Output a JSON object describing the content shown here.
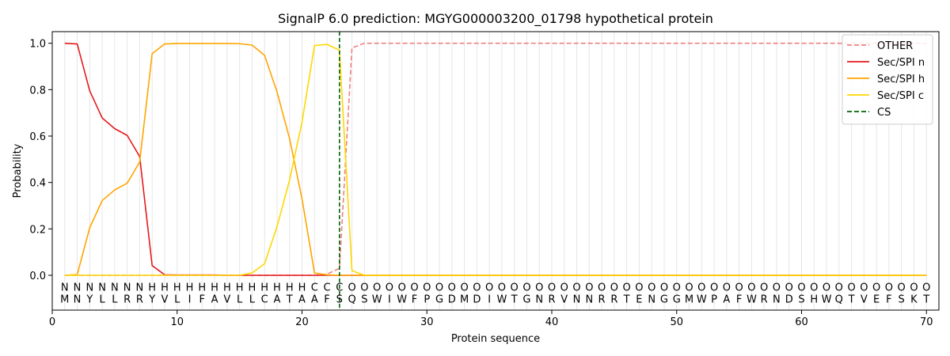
{
  "chart_data": {
    "type": "line",
    "title": "SignalP 6.0 prediction: MGYG000003200_01798 hypothetical protein",
    "xlabel": "Protein sequence",
    "ylabel": "Probability",
    "xlim": [
      0,
      71
    ],
    "ylim": [
      -0.15,
      1.05
    ],
    "xticks": [
      0,
      10,
      20,
      30,
      40,
      50,
      60,
      70
    ],
    "yticks": [
      0.0,
      0.2,
      0.4,
      0.6,
      0.8,
      1.0
    ],
    "xtick_labels": [
      "0",
      "10",
      "20",
      "30",
      "40",
      "50",
      "60",
      "70"
    ],
    "ytick_labels": [
      "0.0",
      "0.2",
      "0.4",
      "0.6",
      "0.8",
      "1.0"
    ],
    "grid": "vertical lines at each residue",
    "legend_position": "top-right",
    "sequence": [
      "M",
      "N",
      "Y",
      "L",
      "L",
      "R",
      "R",
      "Y",
      "V",
      "L",
      "I",
      "F",
      "A",
      "V",
      "L",
      "L",
      "C",
      "A",
      "T",
      "A",
      "A",
      "F",
      "S",
      "Q",
      "S",
      "W",
      "I",
      "W",
      "F",
      "P",
      "G",
      "D",
      "M",
      "D",
      "I",
      "W",
      "T",
      "G",
      "N",
      "R",
      "V",
      "N",
      "N",
      "R",
      "R",
      "T",
      "E",
      "N",
      "G",
      "G",
      "M",
      "W",
      "P",
      "A",
      "F",
      "W",
      "R",
      "N",
      "D",
      "S",
      "H",
      "W",
      "Q",
      "T",
      "V",
      "E",
      "F",
      "S",
      "K",
      "T"
    ],
    "region_labels": [
      "N",
      "N",
      "N",
      "N",
      "N",
      "N",
      "N",
      "H",
      "H",
      "H",
      "H",
      "H",
      "H",
      "H",
      "H",
      "H",
      "H",
      "H",
      "H",
      "H",
      "C",
      "C",
      "C",
      "O",
      "O",
      "O",
      "O",
      "O",
      "O",
      "O",
      "O",
      "O",
      "O",
      "O",
      "O",
      "O",
      "O",
      "O",
      "O",
      "O",
      "O",
      "O",
      "O",
      "O",
      "O",
      "O",
      "O",
      "O",
      "O",
      "O",
      "O",
      "O",
      "O",
      "O",
      "O",
      "O",
      "O",
      "O",
      "O",
      "O",
      "O",
      "O",
      "O",
      "O",
      "O",
      "O",
      "O",
      "O",
      "O",
      "O"
    ],
    "region_colors": {
      "N": "#ff0000",
      "H": "#ffa500",
      "C": "#ffd700",
      "O": "#808080"
    },
    "cleavage_site": 23,
    "series": [
      {
        "name": "OTHER",
        "color": "#f08080",
        "dash": "dashed",
        "values": [
          0.0,
          0.0,
          0.0,
          0.0,
          0.0,
          0.0,
          0.0,
          0.0,
          0.0,
          0.0,
          0.0,
          0.0,
          0.0,
          0.0,
          0.0,
          0.0,
          0.0,
          0.0,
          0.0,
          0.0,
          0.0,
          0.005,
          0.03,
          0.98,
          1.0,
          1.0,
          1.0,
          1.0,
          1.0,
          1.0,
          1.0,
          1.0,
          1.0,
          1.0,
          1.0,
          1.0,
          1.0,
          1.0,
          1.0,
          1.0,
          1.0,
          1.0,
          1.0,
          1.0,
          1.0,
          1.0,
          1.0,
          1.0,
          1.0,
          1.0,
          1.0,
          1.0,
          1.0,
          1.0,
          1.0,
          1.0,
          1.0,
          1.0,
          1.0,
          1.0,
          1.0,
          1.0,
          1.0,
          1.0,
          1.0,
          1.0,
          1.0,
          1.0,
          1.0,
          1.0
        ]
      },
      {
        "name": "Sec/SPI n",
        "color": "#e41a1c",
        "dash": "solid",
        "values": [
          1.0,
          0.997,
          0.795,
          0.678,
          0.632,
          0.603,
          0.512,
          0.042,
          0.002,
          0.001,
          0.001,
          0.001,
          0.001,
          0.0,
          0.0,
          0.0,
          0.0,
          0.0,
          0.0,
          0.0,
          0.0,
          0.0,
          0.0,
          0.0,
          0.0,
          0.0,
          0.0,
          0.0,
          0.0,
          0.0,
          0.0,
          0.0,
          0.0,
          0.0,
          0.0,
          0.0,
          0.0,
          0.0,
          0.0,
          0.0,
          0.0,
          0.0,
          0.0,
          0.0,
          0.0,
          0.0,
          0.0,
          0.0,
          0.0,
          0.0,
          0.0,
          0.0,
          0.0,
          0.0,
          0.0,
          0.0,
          0.0,
          0.0,
          0.0,
          0.0,
          0.0,
          0.0,
          0.0,
          0.0,
          0.0,
          0.0,
          0.0,
          0.0,
          0.0,
          0.0
        ]
      },
      {
        "name": "Sec/SPI h",
        "color": "#ffa500",
        "dash": "solid",
        "values": [
          0.0,
          0.003,
          0.205,
          0.322,
          0.368,
          0.397,
          0.488,
          0.955,
          0.997,
          0.999,
          0.999,
          0.999,
          0.999,
          0.999,
          0.998,
          0.992,
          0.948,
          0.79,
          0.59,
          0.33,
          0.01,
          0.002,
          0.0,
          0.0,
          0.0,
          0.0,
          0.0,
          0.0,
          0.0,
          0.0,
          0.0,
          0.0,
          0.0,
          0.0,
          0.0,
          0.0,
          0.0,
          0.0,
          0.0,
          0.0,
          0.0,
          0.0,
          0.0,
          0.0,
          0.0,
          0.0,
          0.0,
          0.0,
          0.0,
          0.0,
          0.0,
          0.0,
          0.0,
          0.0,
          0.0,
          0.0,
          0.0,
          0.0,
          0.0,
          0.0,
          0.0,
          0.0,
          0.0,
          0.0,
          0.0,
          0.0,
          0.0,
          0.0,
          0.0,
          0.0
        ]
      },
      {
        "name": "Sec/SPI c",
        "color": "#ffd700",
        "dash": "solid",
        "values": [
          0.0,
          0.0,
          0.0,
          0.0,
          0.0,
          0.0,
          0.0,
          0.0,
          0.0,
          0.0,
          0.0,
          0.0,
          0.0,
          0.0,
          0.0,
          0.01,
          0.05,
          0.21,
          0.41,
          0.66,
          0.99,
          0.995,
          0.97,
          0.02,
          0.0,
          0.0,
          0.0,
          0.0,
          0.0,
          0.0,
          0.0,
          0.0,
          0.0,
          0.0,
          0.0,
          0.0,
          0.0,
          0.0,
          0.0,
          0.0,
          0.0,
          0.0,
          0.0,
          0.0,
          0.0,
          0.0,
          0.0,
          0.0,
          0.0,
          0.0,
          0.0,
          0.0,
          0.0,
          0.0,
          0.0,
          0.0,
          0.0,
          0.0,
          0.0,
          0.0,
          0.0,
          0.0,
          0.0,
          0.0,
          0.0,
          0.0,
          0.0,
          0.0,
          0.0,
          0.0
        ]
      }
    ],
    "legend": [
      {
        "name": "OTHER",
        "color": "#f08080",
        "dash": "dashed"
      },
      {
        "name": "Sec/SPI n",
        "color": "#e41a1c",
        "dash": "solid"
      },
      {
        "name": "Sec/SPI h",
        "color": "#ffa500",
        "dash": "solid"
      },
      {
        "name": "Sec/SPI c",
        "color": "#ffd700",
        "dash": "solid"
      },
      {
        "name": "CS",
        "color": "#006400",
        "dash": "dashed"
      }
    ]
  }
}
